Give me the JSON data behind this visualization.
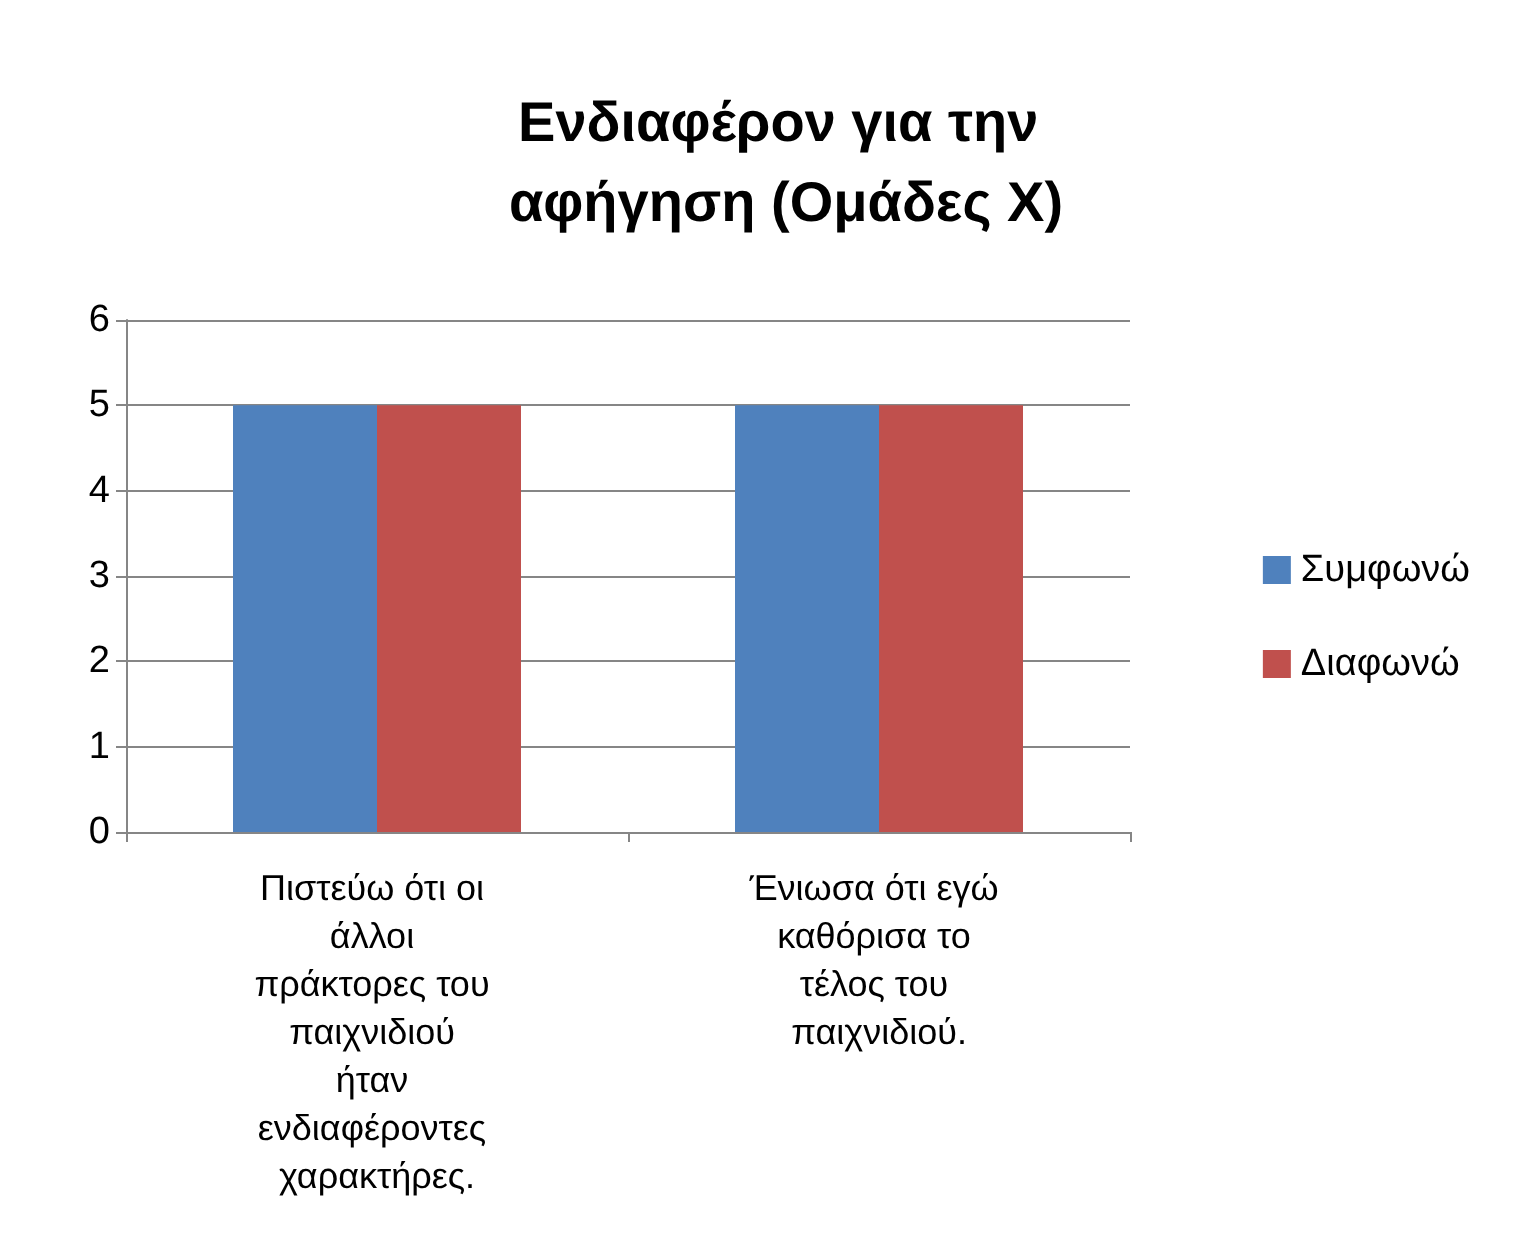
{
  "chart_data": {
    "type": "bar",
    "title": "Ενδιαφέρον για την αφήγηση (Ομάδες Χ)",
    "categories": [
      "Πιστεύω ότι οι άλλοι πράκτορες του παιχνιδιού ήταν ενδιαφέροντες χαρακτήρες.",
      "Ένιωσα ότι εγώ καθόρισα το τέλος του παιχνιδιού."
    ],
    "series": [
      {
        "name": "Συμφωνώ",
        "color": "#4f81bd",
        "values": [
          5,
          5
        ]
      },
      {
        "name": "Διαφωνώ",
        "color": "#c0504d",
        "values": [
          5,
          5
        ]
      }
    ],
    "ylim": [
      0,
      6
    ],
    "yticks": [
      0,
      1,
      2,
      3,
      4,
      5,
      6
    ],
    "grid": "y",
    "legend": "right"
  }
}
